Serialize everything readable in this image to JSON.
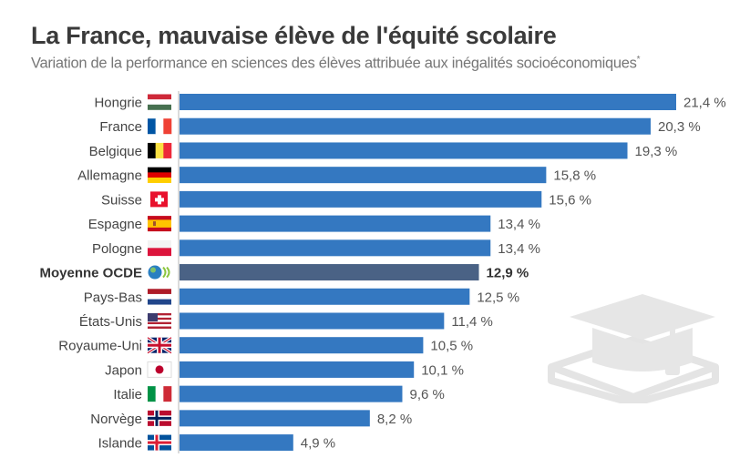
{
  "title": "La France, mauvaise élève de l'équité scolaire",
  "subtitle": "Variation de la performance en sciences des élèves attribuée aux inégalités socioéconomiques",
  "subtitle_note_mark": "*",
  "colors": {
    "bar": "#3478c1",
    "highlight_bar": "#4a6285",
    "axis": "#cfcfcf",
    "watermark": "#e4e4e4"
  },
  "watermark_icon": "graduation-cap-on-book-icon",
  "chart_data": {
    "type": "bar",
    "orientation": "horizontal",
    "categories": [
      "Hongrie",
      "France",
      "Belgique",
      "Allemagne",
      "Suisse",
      "Espagne",
      "Pologne",
      "Moyenne OCDE",
      "Pays-Bas",
      "États-Unis",
      "Royaume-Uni",
      "Japon",
      "Italie",
      "Norvège",
      "Islande"
    ],
    "values": [
      21.4,
      20.3,
      19.3,
      15.8,
      15.6,
      13.4,
      13.4,
      12.9,
      12.5,
      11.4,
      10.5,
      10.1,
      9.6,
      8.2,
      4.9
    ],
    "value_labels": [
      "21,4 %",
      "20,3 %",
      "19,3 %",
      "15,8 %",
      "15,6 %",
      "13,4 %",
      "13,4 %",
      "12,9 %",
      "12,5 %",
      "11,4 %",
      "10,5 %",
      "10,1 %",
      "9,6 %",
      "8,2 %",
      "4,9 %"
    ],
    "flag_icons": [
      "hungary-flag-icon",
      "france-flag-icon",
      "belgium-flag-icon",
      "germany-flag-icon",
      "switzerland-flag-icon",
      "spain-flag-icon",
      "poland-flag-icon",
      "oecd-logo-icon",
      "netherlands-flag-icon",
      "usa-flag-icon",
      "uk-flag-icon",
      "japan-flag-icon",
      "italy-flag-icon",
      "norway-flag-icon",
      "iceland-flag-icon"
    ],
    "highlight": "Moyenne OCDE",
    "unit": "%",
    "xlim": [
      0,
      21.4
    ],
    "grid": false,
    "legend": "none"
  }
}
